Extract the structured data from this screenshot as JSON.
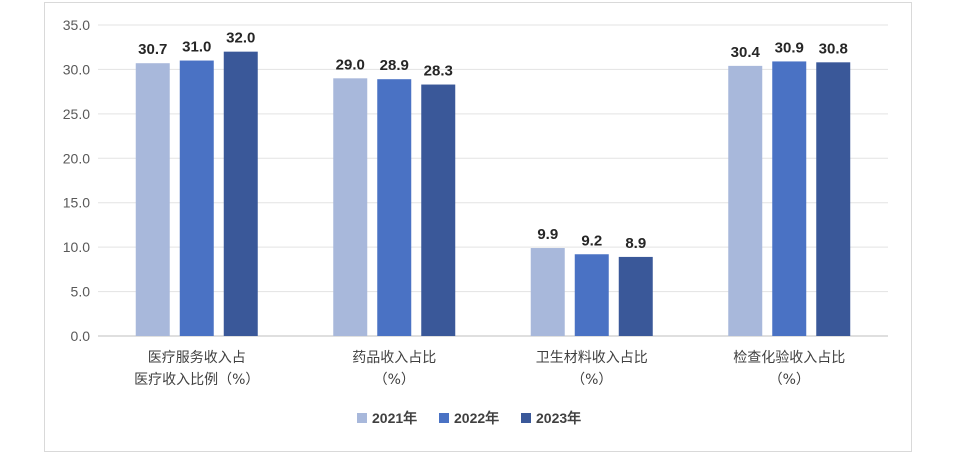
{
  "chart_data": {
    "type": "bar",
    "categories": [
      [
        "医疗服务收入占",
        "医疗收入比例（%）"
      ],
      [
        "药品收入占比",
        "（%）"
      ],
      [
        "卫生材料收入占比",
        "（%）"
      ],
      [
        "检查化验收入占比",
        "（%）"
      ]
    ],
    "series": [
      {
        "name": "2021年",
        "color": "#a8b8db",
        "values": [
          30.7,
          29.0,
          9.9,
          30.4
        ]
      },
      {
        "name": "2022年",
        "color": "#4a72c4",
        "values": [
          31.0,
          28.9,
          9.2,
          30.9
        ]
      },
      {
        "name": "2023年",
        "color": "#3a5899",
        "values": [
          32.0,
          28.3,
          8.9,
          30.8
        ]
      }
    ],
    "y_ticks": [
      "0.0",
      "5.0",
      "10.0",
      "15.0",
      "20.0",
      "25.0",
      "30.0",
      "35.0"
    ],
    "ylim": [
      0,
      35
    ],
    "grid": true,
    "legend": "bottom-center"
  }
}
